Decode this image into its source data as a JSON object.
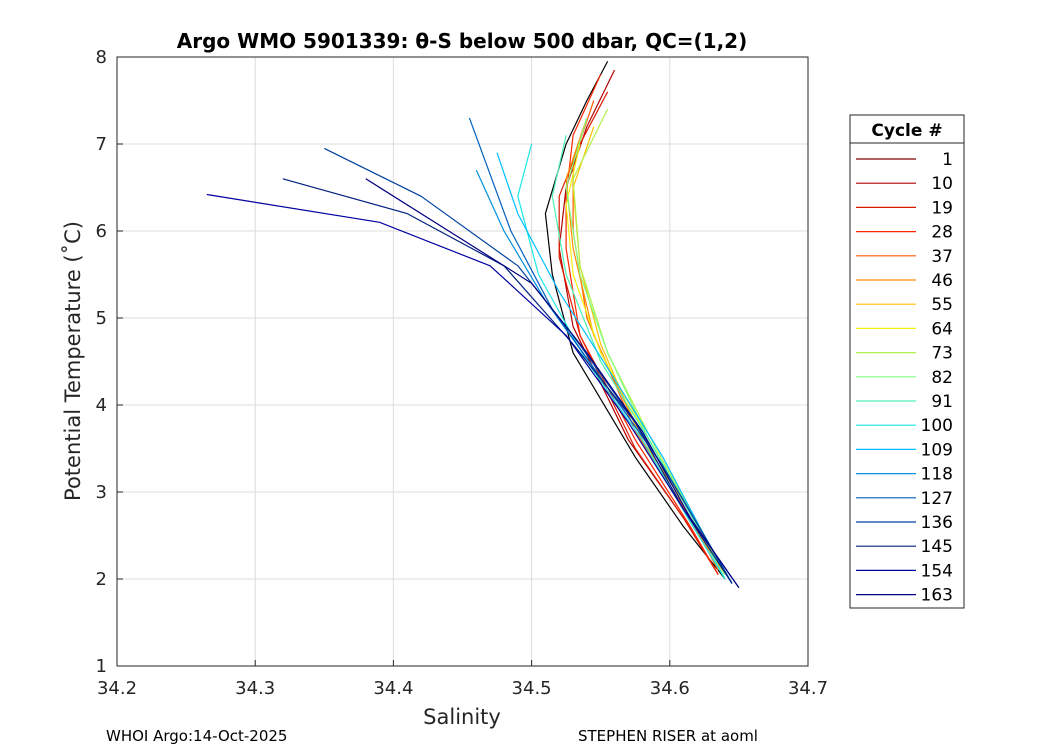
{
  "chart_data": {
    "type": "line",
    "title": "Argo WMO 5901339: θ-S below 500 dbar,  QC=(1,2)",
    "xlabel": "Salinity",
    "ylabel": "Potential Temperature (˚C)",
    "xlim": [
      34.2,
      34.7
    ],
    "ylim": [
      1,
      8
    ],
    "xticks": [
      "34.2",
      "34.3",
      "34.4",
      "34.5",
      "34.6",
      "34.7"
    ],
    "yticks": [
      "1",
      "2",
      "3",
      "4",
      "5",
      "6",
      "7",
      "8"
    ],
    "grid": true,
    "legend": {
      "title": "Cycle #",
      "position": "right",
      "entries": [
        {
          "label": "1",
          "color": "#800000"
        },
        {
          "label": "10",
          "color": "#b30000"
        },
        {
          "label": "19",
          "color": "#d91a00"
        },
        {
          "label": "28",
          "color": "#ff2600"
        },
        {
          "label": "37",
          "color": "#ff5a00"
        },
        {
          "label": "46",
          "color": "#ff8c00"
        },
        {
          "label": "55",
          "color": "#ffbf00"
        },
        {
          "label": "64",
          "color": "#f2f20d"
        },
        {
          "label": "73",
          "color": "#b3f24d"
        },
        {
          "label": "82",
          "color": "#80ff80"
        },
        {
          "label": "91",
          "color": "#4df2b3"
        },
        {
          "label": "100",
          "color": "#1ae6e6"
        },
        {
          "label": "109",
          "color": "#00bfff"
        },
        {
          "label": "118",
          "color": "#0090e0"
        },
        {
          "label": "127",
          "color": "#0060c0"
        },
        {
          "label": "136",
          "color": "#0040a0"
        },
        {
          "label": "145",
          "color": "#002080"
        },
        {
          "label": "154",
          "color": "#0000a0"
        },
        {
          "label": "163",
          "color": "#000080"
        }
      ]
    },
    "series": [
      {
        "name": "1",
        "color": "#000000",
        "x": [
          34.555,
          34.54,
          34.525,
          34.51,
          34.515,
          34.53,
          34.575,
          34.61,
          34.64
        ],
        "y": [
          7.95,
          7.5,
          7.0,
          6.2,
          5.5,
          4.6,
          3.4,
          2.6,
          2.0
        ]
      },
      {
        "name": "10",
        "color": "#b30000",
        "x": [
          34.56,
          34.54,
          34.525,
          34.52,
          34.53,
          34.57,
          34.61,
          34.635
        ],
        "y": [
          7.85,
          7.2,
          6.5,
          5.8,
          4.9,
          3.6,
          2.7,
          2.05
        ]
      },
      {
        "name": "19",
        "color": "#d91a00",
        "x": [
          34.555,
          34.535,
          34.52,
          34.52,
          34.535,
          34.575,
          34.61,
          34.635
        ],
        "y": [
          7.6,
          7.0,
          6.4,
          5.7,
          4.8,
          3.5,
          2.7,
          2.05
        ]
      },
      {
        "name": "28",
        "color": "#ff2600",
        "x": [
          34.55,
          34.53,
          34.525,
          34.525,
          34.535,
          34.575,
          34.615,
          34.635
        ],
        "y": [
          7.8,
          7.1,
          6.4,
          5.8,
          4.8,
          3.6,
          2.6,
          2.05
        ]
      },
      {
        "name": "37",
        "color": "#ff5a00",
        "x": [
          34.545,
          34.53,
          34.53,
          34.54,
          34.575,
          34.615,
          34.635
        ],
        "y": [
          7.5,
          6.8,
          6.0,
          5.0,
          3.7,
          2.7,
          2.1
        ]
      },
      {
        "name": "46",
        "color": "#ff8c00",
        "x": [
          34.54,
          34.525,
          34.53,
          34.545,
          34.58,
          34.615,
          34.64
        ],
        "y": [
          7.3,
          6.6,
          5.8,
          4.8,
          3.6,
          2.65,
          2.05
        ]
      },
      {
        "name": "55",
        "color": "#ffbf00",
        "x": [
          34.545,
          34.53,
          34.535,
          34.55,
          34.58,
          34.62,
          34.64
        ],
        "y": [
          7.2,
          6.5,
          5.6,
          4.7,
          3.6,
          2.65,
          2.05
        ]
      },
      {
        "name": "64",
        "color": "#f2f20d",
        "x": [
          34.535,
          34.525,
          34.53,
          34.55,
          34.585,
          34.62,
          34.64
        ],
        "y": [
          7.0,
          6.3,
          5.5,
          4.6,
          3.6,
          2.6,
          2.05
        ]
      },
      {
        "name": "73",
        "color": "#b3f24d",
        "x": [
          34.555,
          34.53,
          34.535,
          34.555,
          34.59,
          34.62,
          34.64
        ],
        "y": [
          7.4,
          6.6,
          5.6,
          4.6,
          3.5,
          2.65,
          2.05
        ]
      },
      {
        "name": "82",
        "color": "#80ff80",
        "x": [
          34.54,
          34.525,
          34.535,
          34.555,
          34.585,
          34.62,
          34.64
        ],
        "y": [
          7.3,
          6.5,
          5.5,
          4.6,
          3.6,
          2.65,
          2.05
        ]
      },
      {
        "name": "91",
        "color": "#4df2b3",
        "x": [
          34.525,
          34.515,
          34.525,
          34.55,
          34.585,
          34.62,
          34.64
        ],
        "y": [
          7.1,
          6.4,
          5.5,
          4.5,
          3.6,
          2.6,
          2.0
        ]
      },
      {
        "name": "100",
        "color": "#1ae6e6",
        "x": [
          34.5,
          34.49,
          34.505,
          34.54,
          34.58,
          34.615,
          34.64
        ],
        "y": [
          7.0,
          6.4,
          5.5,
          4.5,
          3.6,
          2.65,
          2.0
        ]
      },
      {
        "name": "109",
        "color": "#00bfff",
        "x": [
          34.475,
          34.49,
          34.52,
          34.56,
          34.595,
          34.625,
          34.645
        ],
        "y": [
          6.9,
          6.2,
          5.3,
          4.3,
          3.4,
          2.5,
          1.95
        ]
      },
      {
        "name": "118",
        "color": "#0090e0",
        "x": [
          34.46,
          34.48,
          34.51,
          34.555,
          34.595,
          34.625,
          34.645
        ],
        "y": [
          6.7,
          6.0,
          5.2,
          4.2,
          3.3,
          2.5,
          1.95
        ]
      },
      {
        "name": "127",
        "color": "#0060c0",
        "x": [
          34.455,
          34.485,
          34.515,
          34.555,
          34.595,
          34.625,
          34.645
        ],
        "y": [
          7.3,
          6.0,
          5.1,
          4.2,
          3.3,
          2.5,
          1.95
        ]
      },
      {
        "name": "136",
        "color": "#0040a0",
        "x": [
          34.35,
          34.42,
          34.49,
          34.53,
          34.575,
          34.61,
          34.645
        ],
        "y": [
          6.95,
          6.4,
          5.6,
          4.8,
          3.8,
          2.9,
          1.95
        ]
      },
      {
        "name": "145",
        "color": "#002080",
        "x": [
          34.32,
          34.41,
          34.48,
          34.53,
          34.575,
          34.61,
          34.645
        ],
        "y": [
          6.6,
          6.2,
          5.6,
          4.7,
          3.8,
          2.8,
          1.95
        ]
      },
      {
        "name": "154",
        "color": "#0000a0",
        "x": [
          34.265,
          34.39,
          34.47,
          34.525,
          34.57,
          34.61,
          34.65
        ],
        "y": [
          6.42,
          6.1,
          5.6,
          4.8,
          3.8,
          2.8,
          1.9
        ]
      },
      {
        "name": "163",
        "color": "#000080",
        "x": [
          34.38,
          34.44,
          34.5,
          34.54,
          34.58,
          34.615,
          34.65
        ],
        "y": [
          6.6,
          6.0,
          5.4,
          4.6,
          3.7,
          2.7,
          1.9
        ]
      }
    ]
  },
  "footer": {
    "left": "WHOI Argo:14-Oct-2025",
    "right": "STEPHEN RISER at aoml"
  }
}
